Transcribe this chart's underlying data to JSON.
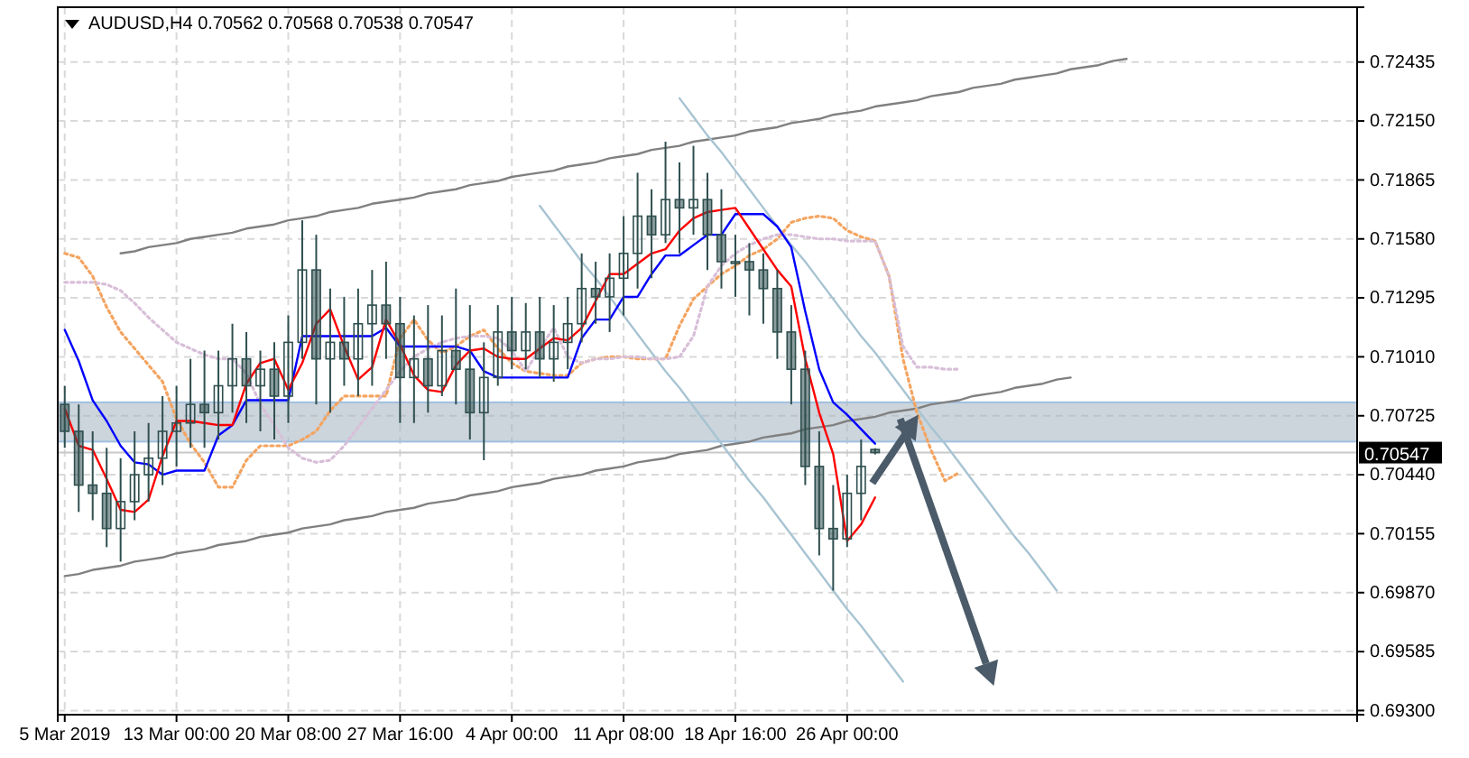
{
  "chart_data": {
    "type": "candlestick",
    "title": "AUDUSD,H4 0.70562 0.70568 0.70538 0.70547",
    "color": "#2f4f4f",
    "grid": true,
    "ylim": [
      0.6928,
      0.727
    ],
    "yticks": [
      {
        "value": 0.693,
        "label": "0.69300"
      },
      {
        "value": 0.69585,
        "label": "0.69585"
      },
      {
        "value": 0.6987,
        "label": "0.69870"
      },
      {
        "value": 0.70155,
        "label": "0.70155"
      },
      {
        "value": 0.7044,
        "label": "0.70440"
      },
      {
        "value": 0.70725,
        "label": "0.70725"
      },
      {
        "value": 0.7101,
        "label": "0.71010"
      },
      {
        "value": 0.71295,
        "label": "0.71295"
      },
      {
        "value": 0.7158,
        "label": "0.71580"
      },
      {
        "value": 0.71865,
        "label": "0.71865"
      },
      {
        "value": 0.7215,
        "label": "0.72150"
      },
      {
        "value": 0.72435,
        "label": "0.72435"
      }
    ],
    "categories": [
      "5 Mar 2019",
      null,
      null,
      null,
      null,
      null,
      null,
      null,
      "13 Mar 00:00",
      null,
      null,
      null,
      null,
      null,
      null,
      null,
      "20 Mar 08:00",
      null,
      null,
      null,
      null,
      null,
      null,
      null,
      "27 Mar 16:00",
      null,
      null,
      null,
      null,
      null,
      null,
      null,
      "4 Apr 00:00",
      null,
      null,
      null,
      null,
      null,
      null,
      null,
      "11 Apr 08:00",
      null,
      null,
      null,
      null,
      null,
      null,
      null,
      "18 Apr 16:00",
      null,
      null,
      null,
      null,
      null,
      null,
      null,
      "26 Apr 00:00",
      null,
      null,
      null,
      null,
      null,
      null,
      null,
      null,
      null,
      null,
      null,
      null,
      null,
      null,
      null,
      null,
      null,
      null,
      null,
      null,
      null,
      null,
      null,
      null,
      null,
      null,
      null,
      null,
      null,
      null,
      null,
      null,
      null,
      null,
      null,
      null
    ],
    "ohlc": [
      [
        0.7078,
        0.7087,
        0.7057,
        0.7065
      ],
      [
        0.7065,
        0.7078,
        0.7026,
        0.7039
      ],
      [
        0.7039,
        0.7065,
        0.7022,
        0.7035
      ],
      [
        0.7035,
        0.7057,
        0.7009,
        0.7018
      ],
      [
        0.7018,
        0.7052,
        0.7002,
        0.7031
      ],
      [
        0.7031,
        0.7065,
        0.7022,
        0.7044
      ],
      [
        0.7044,
        0.7069,
        0.7031,
        0.7052
      ],
      [
        0.7052,
        0.7082,
        0.7039,
        0.7065
      ],
      [
        0.7065,
        0.7087,
        0.7048,
        0.7069
      ],
      [
        0.7069,
        0.71,
        0.7057,
        0.7078
      ],
      [
        0.7078,
        0.7104,
        0.7057,
        0.7074
      ],
      [
        0.7074,
        0.7104,
        0.7061,
        0.7087
      ],
      [
        0.7087,
        0.7117,
        0.7074,
        0.71
      ],
      [
        0.71,
        0.7113,
        0.7069,
        0.7087
      ],
      [
        0.7087,
        0.7104,
        0.7065,
        0.7095
      ],
      [
        0.7095,
        0.7108,
        0.7061,
        0.7082
      ],
      [
        0.7082,
        0.7121,
        0.7069,
        0.7108
      ],
      [
        0.7108,
        0.7167,
        0.71,
        0.7143
      ],
      [
        0.7143,
        0.716,
        0.7078,
        0.71
      ],
      [
        0.71,
        0.7134,
        0.7074,
        0.7108
      ],
      [
        0.7108,
        0.713,
        0.7087,
        0.71
      ],
      [
        0.71,
        0.7134,
        0.7082,
        0.7117
      ],
      [
        0.7117,
        0.7143,
        0.7087,
        0.7126
      ],
      [
        0.7126,
        0.7147,
        0.71,
        0.7117
      ],
      [
        0.7117,
        0.713,
        0.7069,
        0.7091
      ],
      [
        0.7091,
        0.7121,
        0.7069,
        0.71
      ],
      [
        0.71,
        0.7126,
        0.7074,
        0.7087
      ],
      [
        0.7087,
        0.7121,
        0.7082,
        0.7104
      ],
      [
        0.7104,
        0.7134,
        0.7078,
        0.7095
      ],
      [
        0.7095,
        0.7126,
        0.7061,
        0.7074
      ],
      [
        0.7074,
        0.7108,
        0.7051,
        0.7091
      ],
      [
        0.7091,
        0.7126,
        0.7087,
        0.7113
      ],
      [
        0.7113,
        0.713,
        0.7095,
        0.7104
      ],
      [
        0.7104,
        0.7127,
        0.7095,
        0.7113
      ],
      [
        0.7113,
        0.713,
        0.7091,
        0.71
      ],
      [
        0.71,
        0.7126,
        0.7089,
        0.7108
      ],
      [
        0.7108,
        0.713,
        0.7095,
        0.7117
      ],
      [
        0.7117,
        0.7151,
        0.7108,
        0.7134
      ],
      [
        0.7134,
        0.7147,
        0.7117,
        0.713
      ],
      [
        0.713,
        0.7151,
        0.7113,
        0.7139
      ],
      [
        0.7139,
        0.7169,
        0.7121,
        0.7151
      ],
      [
        0.7151,
        0.719,
        0.7134,
        0.7169
      ],
      [
        0.7169,
        0.7182,
        0.7139,
        0.716
      ],
      [
        0.716,
        0.7205,
        0.7156,
        0.7177
      ],
      [
        0.7177,
        0.7195,
        0.7151,
        0.7173
      ],
      [
        0.7173,
        0.7203,
        0.716,
        0.7177
      ],
      [
        0.7177,
        0.719,
        0.7143,
        0.716
      ],
      [
        0.716,
        0.7182,
        0.7134,
        0.7147
      ],
      [
        0.7147,
        0.716,
        0.713,
        0.7147
      ],
      [
        0.7147,
        0.7156,
        0.7121,
        0.7143
      ],
      [
        0.7143,
        0.7151,
        0.7117,
        0.7134
      ],
      [
        0.7134,
        0.7143,
        0.71,
        0.7113
      ],
      [
        0.7113,
        0.7126,
        0.7078,
        0.7095
      ],
      [
        0.7095,
        0.7104,
        0.7039,
        0.7048
      ],
      [
        0.7048,
        0.7065,
        0.7005,
        0.7018
      ],
      [
        0.7018,
        0.7039,
        0.6988,
        0.7013
      ],
      [
        0.7013,
        0.7044,
        0.7009,
        0.7035
      ],
      [
        0.7035,
        0.7061,
        0.7022,
        0.7048
      ],
      [
        0.70562,
        0.70568,
        0.70538,
        0.70547
      ],
      null,
      null,
      null,
      null,
      null,
      null,
      null,
      null,
      null,
      null,
      null,
      null,
      null,
      null,
      null,
      null,
      null,
      null,
      null,
      null,
      null,
      null,
      null,
      null,
      null,
      null,
      null,
      null,
      null,
      null,
      null,
      null,
      null,
      null
    ],
    "series": [
      {
        "type": "line",
        "color": "#808080",
        "values": [
          null,
          null,
          null,
          null,
          0.7151,
          0.7152,
          0.7154,
          0.7155,
          0.7156,
          0.7158,
          0.7159,
          0.716,
          0.7161,
          0.7163,
          0.7164,
          0.7165,
          0.7167,
          0.7168,
          0.7169,
          0.7171,
          0.7172,
          0.7173,
          0.7175,
          0.7176,
          0.7177,
          0.7178,
          0.718,
          0.7181,
          0.7182,
          0.7184,
          0.7185,
          0.7186,
          0.7188,
          0.7189,
          0.719,
          0.7191,
          0.7193,
          0.7194,
          0.7195,
          0.7197,
          0.7198,
          0.7199,
          0.7201,
          0.7202,
          0.7203,
          0.7205,
          0.7206,
          0.7207,
          0.7208,
          0.721,
          0.7211,
          0.7212,
          0.7214,
          0.7215,
          0.7216,
          0.7218,
          0.7219,
          0.722,
          0.7222,
          0.7223,
          0.7224,
          0.7225,
          0.7227,
          0.7228,
          0.7229,
          0.7231,
          0.7232,
          0.7233,
          0.7235,
          0.7236,
          0.7237,
          0.7238,
          0.724,
          0.7241,
          0.7242,
          0.7244,
          0.7245,
          null,
          null,
          null,
          null,
          null,
          null,
          null,
          null,
          null,
          null,
          null,
          null,
          null,
          null,
          null,
          null
        ]
      },
      {
        "type": "line",
        "color": "#808080",
        "values": [
          0.6995,
          0.6996,
          0.6998,
          0.6999,
          0.7,
          0.7002,
          0.7003,
          0.7004,
          0.7006,
          0.7007,
          0.7008,
          0.701,
          0.7011,
          0.7012,
          0.7014,
          0.7015,
          0.7016,
          0.7018,
          0.7019,
          0.702,
          0.7022,
          0.7023,
          0.7024,
          0.7026,
          0.7027,
          0.7028,
          0.703,
          0.7031,
          0.7032,
          0.7034,
          0.7035,
          0.7036,
          0.7038,
          0.7039,
          0.704,
          0.7042,
          0.7043,
          0.7044,
          0.7046,
          0.7047,
          0.7048,
          0.705,
          0.7051,
          0.7052,
          0.7054,
          0.7055,
          0.7056,
          0.7058,
          0.7059,
          0.706,
          0.7062,
          0.7063,
          0.7064,
          0.7066,
          0.7067,
          0.7068,
          0.707,
          0.7071,
          0.7072,
          0.7074,
          0.7075,
          0.7076,
          0.7078,
          0.7079,
          0.708,
          0.7082,
          0.7083,
          0.7084,
          0.7086,
          0.7087,
          0.7088,
          0.709,
          0.7091,
          null,
          null,
          null,
          null,
          null,
          null,
          null,
          null,
          null,
          null,
          null,
          null,
          null,
          null,
          null,
          null,
          null,
          null,
          null,
          null
        ]
      },
      {
        "type": "line",
        "color": "#a8c4d2",
        "values": [
          null,
          null,
          null,
          null,
          null,
          null,
          null,
          null,
          null,
          null,
          null,
          null,
          null,
          null,
          null,
          null,
          null,
          null,
          null,
          null,
          null,
          null,
          null,
          null,
          null,
          null,
          null,
          null,
          null,
          null,
          null,
          null,
          null,
          null,
          null,
          null,
          null,
          null,
          null,
          null,
          null,
          null,
          null,
          null,
          0.7226,
          0.7217,
          0.7208,
          0.72,
          0.7191,
          0.7182,
          0.7173,
          0.7164,
          0.7155,
          0.7147,
          0.7138,
          0.7129,
          0.712,
          0.7111,
          0.7103,
          0.7094,
          0.7085,
          0.7076,
          0.7067,
          0.7059,
          0.705,
          0.7041,
          0.7032,
          0.7023,
          0.7014,
          0.7006,
          0.6997,
          0.6988,
          null,
          null,
          null,
          null,
          null,
          null,
          null,
          null,
          null,
          null,
          null,
          null,
          null,
          null,
          null,
          null,
          null,
          null,
          null,
          null,
          null
        ]
      },
      {
        "type": "line",
        "color": "#a8c4d2",
        "values": [
          null,
          null,
          null,
          null,
          null,
          null,
          null,
          null,
          null,
          null,
          null,
          null,
          null,
          null,
          null,
          null,
          null,
          null,
          null,
          null,
          null,
          null,
          null,
          null,
          null,
          null,
          null,
          null,
          null,
          null,
          null,
          null,
          null,
          null,
          0.7174,
          0.7165,
          0.7156,
          0.7147,
          0.7139,
          0.713,
          0.7121,
          0.7112,
          0.7103,
          0.7094,
          0.7086,
          0.7077,
          0.7068,
          0.7059,
          0.705,
          0.7041,
          0.7033,
          0.7024,
          0.7015,
          0.7006,
          0.6997,
          0.6988,
          0.6979,
          0.6971,
          0.6962,
          0.6953,
          0.6944,
          null,
          null,
          null,
          null,
          null,
          null,
          null,
          null,
          null,
          null,
          null,
          null,
          null,
          null,
          null,
          null,
          null,
          null,
          null,
          null,
          null,
          null,
          null,
          null,
          null,
          null,
          null,
          null,
          null,
          null,
          null,
          null
        ]
      },
      {
        "type": "line",
        "color": "#f4a460",
        "line_style": "dotted",
        "values": [
          0.7151,
          0.7149,
          0.714,
          0.7125,
          0.7113,
          0.7105,
          0.7097,
          0.7089,
          0.7071,
          0.7059,
          0.705,
          0.7038,
          0.7038,
          0.7051,
          0.7058,
          0.7058,
          0.7058,
          0.7061,
          0.7065,
          0.7075,
          0.7082,
          0.7082,
          0.7082,
          0.7082,
          0.711,
          0.7119,
          0.7109,
          0.7103,
          0.7106,
          0.7111,
          0.7114,
          0.7105,
          0.7098,
          0.7094,
          0.7093,
          0.7092,
          0.7092,
          0.7098,
          0.71,
          0.7101,
          0.7101,
          0.71,
          0.71,
          0.71,
          0.7116,
          0.7129,
          0.7135,
          0.7141,
          0.7145,
          0.715,
          0.7153,
          0.7158,
          0.7166,
          0.7168,
          0.7169,
          0.7168,
          0.7162,
          0.7159,
          0.7157,
          0.714,
          0.71,
          0.7074,
          0.7056,
          0.7041,
          0.7045,
          null,
          null,
          null,
          null,
          null,
          null,
          null,
          null,
          null,
          null,
          null,
          null,
          null,
          null,
          null,
          null,
          null,
          null,
          null,
          null,
          null,
          null,
          null,
          null,
          null,
          null,
          null,
          null
        ]
      },
      {
        "type": "line",
        "color": "#d8bfd8",
        "line_style": "dotted",
        "values": [
          0.7137,
          0.7137,
          0.7137,
          0.7136,
          0.7133,
          0.7127,
          0.712,
          0.7114,
          0.7108,
          0.7105,
          0.7102,
          0.71,
          0.71,
          0.7093,
          0.7078,
          0.7068,
          0.7057,
          0.7052,
          0.705,
          0.7051,
          0.7058,
          0.7067,
          0.7076,
          0.7085,
          0.7094,
          0.7101,
          0.7105,
          0.7108,
          0.711,
          0.7111,
          0.7111,
          0.711,
          0.7104,
          0.7094,
          0.7105,
          0.7115,
          0.7101,
          0.7098,
          0.71,
          0.71,
          0.7101,
          0.7101,
          0.71,
          0.71,
          0.7101,
          0.7111,
          0.7135,
          0.7145,
          0.7151,
          0.7155,
          0.7158,
          0.716,
          0.716,
          0.7159,
          0.7158,
          0.7158,
          0.7157,
          0.7157,
          0.7157,
          0.714,
          0.7106,
          0.7096,
          0.7096,
          0.7095,
          0.7095,
          null,
          null,
          null,
          null,
          null,
          null,
          null,
          null,
          null,
          null,
          null,
          null,
          null,
          null,
          null,
          null,
          null,
          null,
          null,
          null,
          null,
          null,
          null,
          null,
          null,
          null,
          null,
          null
        ]
      },
      {
        "type": "line",
        "color": "#0000ff",
        "values": [
          0.7114,
          0.7099,
          0.708,
          0.707,
          0.7058,
          0.705,
          0.7049,
          0.7044,
          0.7046,
          0.7046,
          0.7046,
          0.7063,
          0.7068,
          0.708,
          0.708,
          0.708,
          0.708,
          0.7111,
          0.7111,
          0.7111,
          0.7111,
          0.7111,
          0.7111,
          0.7115,
          0.7106,
          0.7106,
          0.7106,
          0.7106,
          0.7106,
          0.7104,
          0.7094,
          0.7091,
          0.7091,
          0.7091,
          0.7091,
          0.7091,
          0.7091,
          0.711,
          0.7119,
          0.7119,
          0.713,
          0.713,
          0.7141,
          0.715,
          0.715,
          0.7155,
          0.716,
          0.716,
          0.717,
          0.717,
          0.717,
          0.7164,
          0.7154,
          0.7123,
          0.7095,
          0.7079,
          0.7073,
          0.7066,
          0.7059,
          null,
          null,
          null,
          null,
          null,
          null,
          null,
          null,
          null,
          null,
          null,
          null,
          null,
          null,
          null,
          null,
          null,
          null,
          null,
          null,
          null,
          null,
          null,
          null,
          null,
          null,
          null,
          null,
          null,
          null,
          null,
          null,
          null,
          null
        ]
      },
      {
        "type": "line",
        "color": "#ff0000",
        "values": [
          0.7076,
          0.7058,
          0.7056,
          0.7042,
          0.7027,
          0.7026,
          0.7032,
          0.7053,
          0.707,
          0.707,
          0.7069,
          0.7068,
          0.7068,
          0.7088,
          0.7098,
          0.71,
          0.7085,
          0.7098,
          0.7117,
          0.7124,
          0.7106,
          0.709,
          0.7096,
          0.7119,
          0.7107,
          0.7092,
          0.7085,
          0.7084,
          0.7097,
          0.7104,
          0.7105,
          0.7101,
          0.71,
          0.71,
          0.7105,
          0.711,
          0.7109,
          0.7115,
          0.7128,
          0.7141,
          0.7141,
          0.7146,
          0.7151,
          0.7153,
          0.7162,
          0.7168,
          0.7171,
          0.7172,
          0.7173,
          0.7163,
          0.7153,
          0.7143,
          0.7135,
          0.71,
          0.7074,
          0.7054,
          0.7012,
          0.702,
          0.7033,
          null,
          null,
          null,
          null,
          null,
          null,
          null,
          null,
          null,
          null,
          null,
          null,
          null,
          null,
          null,
          null,
          null,
          null,
          null,
          null,
          null,
          null,
          null,
          null,
          null,
          null,
          null,
          null,
          null,
          null,
          null,
          null,
          null,
          null
        ]
      }
    ],
    "bands": [
      {
        "axis": "y",
        "from": 0.706,
        "to": 0.7079,
        "color": "#a3b1c0"
      }
    ],
    "ref_lines": [
      {
        "axis": "y",
        "value": 0.70547,
        "label": "0.70547",
        "color": "#c8c8c8"
      }
    ]
  }
}
